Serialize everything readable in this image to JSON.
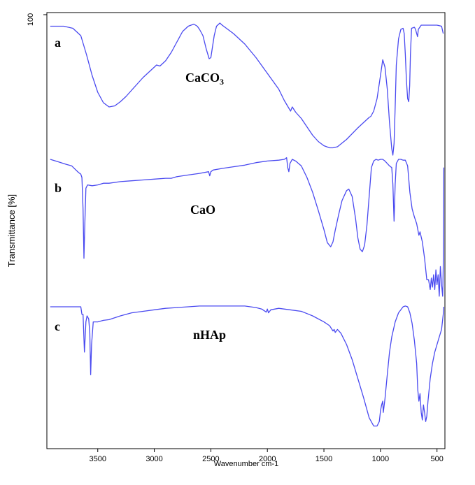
{
  "chart_data": {
    "type": "line",
    "title": "",
    "xlabel": "Wavenumber cm-1",
    "ylabel": "Transmittance [%]",
    "xlim": [
      3950,
      430
    ],
    "x_reversed": true,
    "x_ticks": [
      3500,
      3000,
      2500,
      2000,
      1500,
      1000,
      500
    ],
    "y_ticks": [
      "100"
    ],
    "grid": false,
    "legend": "none",
    "line_color": "#4a4af0",
    "series": [
      {
        "letter": "a",
        "name": "CaCO",
        "name_subscript": "3",
        "points": [
          [
            3920,
            0.03
          ],
          [
            3800,
            0.03
          ],
          [
            3720,
            0.05
          ],
          [
            3650,
            0.12
          ],
          [
            3600,
            0.3
          ],
          [
            3550,
            0.5
          ],
          [
            3500,
            0.66
          ],
          [
            3450,
            0.76
          ],
          [
            3400,
            0.8
          ],
          [
            3350,
            0.79
          ],
          [
            3300,
            0.75
          ],
          [
            3250,
            0.7
          ],
          [
            3200,
            0.64
          ],
          [
            3150,
            0.58
          ],
          [
            3100,
            0.52
          ],
          [
            3050,
            0.47
          ],
          [
            3000,
            0.42
          ],
          [
            2980,
            0.4
          ],
          [
            2950,
            0.41
          ],
          [
            2900,
            0.36
          ],
          [
            2850,
            0.28
          ],
          [
            2800,
            0.18
          ],
          [
            2750,
            0.08
          ],
          [
            2700,
            0.03
          ],
          [
            2650,
            0.01
          ],
          [
            2620,
            0.03
          ],
          [
            2600,
            0.06
          ],
          [
            2570,
            0.12
          ],
          [
            2540,
            0.25
          ],
          [
            2515,
            0.34
          ],
          [
            2500,
            0.33
          ],
          [
            2490,
            0.26
          ],
          [
            2470,
            0.12
          ],
          [
            2450,
            0.03
          ],
          [
            2420,
            0.0
          ],
          [
            2400,
            0.02
          ],
          [
            2300,
            0.1
          ],
          [
            2200,
            0.2
          ],
          [
            2100,
            0.33
          ],
          [
            2000,
            0.48
          ],
          [
            1900,
            0.63
          ],
          [
            1850,
            0.74
          ],
          [
            1800,
            0.83
          ],
          [
            1795,
            0.84
          ],
          [
            1780,
            0.8
          ],
          [
            1750,
            0.85
          ],
          [
            1700,
            0.91
          ],
          [
            1650,
            0.99
          ],
          [
            1600,
            1.07
          ],
          [
            1550,
            1.13
          ],
          [
            1500,
            1.17
          ],
          [
            1450,
            1.19
          ],
          [
            1420,
            1.19
          ],
          [
            1380,
            1.18
          ],
          [
            1300,
            1.11
          ],
          [
            1200,
            1.0
          ],
          [
            1130,
            0.93
          ],
          [
            1100,
            0.9
          ],
          [
            1085,
            0.89
          ],
          [
            1060,
            0.84
          ],
          [
            1030,
            0.72
          ],
          [
            1000,
            0.5
          ],
          [
            980,
            0.35
          ],
          [
            960,
            0.42
          ],
          [
            940,
            0.63
          ],
          [
            920,
            0.95
          ],
          [
            900,
            1.2
          ],
          [
            890,
            1.26
          ],
          [
            880,
            1.15
          ],
          [
            870,
            0.8
          ],
          [
            860,
            0.4
          ],
          [
            840,
            0.15
          ],
          [
            820,
            0.06
          ],
          [
            800,
            0.05
          ],
          [
            790,
            0.1
          ],
          [
            780,
            0.3
          ],
          [
            770,
            0.55
          ],
          [
            760,
            0.72
          ],
          [
            750,
            0.75
          ],
          [
            742,
            0.6
          ],
          [
            735,
            0.3
          ],
          [
            725,
            0.05
          ],
          [
            700,
            0.04
          ],
          [
            690,
            0.06
          ],
          [
            680,
            0.1
          ],
          [
            672,
            0.13
          ],
          [
            665,
            0.06
          ],
          [
            640,
            0.02
          ],
          [
            580,
            0.02
          ],
          [
            500,
            0.02
          ],
          [
            460,
            0.03
          ],
          [
            445,
            0.1
          ]
        ]
      },
      {
        "letter": "b",
        "name": "CaO",
        "points": [
          [
            3920,
            0.0
          ],
          [
            3850,
            0.03
          ],
          [
            3780,
            0.06
          ],
          [
            3730,
            0.08
          ],
          [
            3700,
            0.12
          ],
          [
            3670,
            0.16
          ],
          [
            3650,
            0.18
          ],
          [
            3640,
            0.22
          ],
          [
            3630,
            0.6
          ],
          [
            3622,
            1.2
          ],
          [
            3615,
            0.8
          ],
          [
            3605,
            0.35
          ],
          [
            3590,
            0.31
          ],
          [
            3550,
            0.32
          ],
          [
            3500,
            0.31
          ],
          [
            3450,
            0.29
          ],
          [
            3400,
            0.29
          ],
          [
            3300,
            0.27
          ],
          [
            3200,
            0.26
          ],
          [
            3100,
            0.25
          ],
          [
            3000,
            0.24
          ],
          [
            2900,
            0.23
          ],
          [
            2850,
            0.23
          ],
          [
            2800,
            0.21
          ],
          [
            2700,
            0.19
          ],
          [
            2600,
            0.17
          ],
          [
            2520,
            0.15
          ],
          [
            2510,
            0.2
          ],
          [
            2500,
            0.15
          ],
          [
            2480,
            0.13
          ],
          [
            2400,
            0.11
          ],
          [
            2300,
            0.09
          ],
          [
            2200,
            0.07
          ],
          [
            2100,
            0.04
          ],
          [
            2000,
            0.02
          ],
          [
            1900,
            0.01
          ],
          [
            1850,
            0.0
          ],
          [
            1830,
            -0.02
          ],
          [
            1820,
            0.1
          ],
          [
            1810,
            0.15
          ],
          [
            1800,
            0.05
          ],
          [
            1780,
            0.0
          ],
          [
            1750,
            0.02
          ],
          [
            1700,
            0.08
          ],
          [
            1650,
            0.22
          ],
          [
            1600,
            0.4
          ],
          [
            1550,
            0.62
          ],
          [
            1500,
            0.85
          ],
          [
            1470,
            1.01
          ],
          [
            1440,
            1.06
          ],
          [
            1420,
            1.0
          ],
          [
            1400,
            0.86
          ],
          [
            1370,
            0.67
          ],
          [
            1340,
            0.5
          ],
          [
            1300,
            0.38
          ],
          [
            1280,
            0.36
          ],
          [
            1250,
            0.45
          ],
          [
            1220,
            0.72
          ],
          [
            1200,
            0.95
          ],
          [
            1180,
            1.09
          ],
          [
            1160,
            1.12
          ],
          [
            1140,
            1.04
          ],
          [
            1120,
            0.8
          ],
          [
            1100,
            0.45
          ],
          [
            1080,
            0.1
          ],
          [
            1060,
            0.02
          ],
          [
            1040,
            0.0
          ],
          [
            1020,
            0.01
          ],
          [
            1000,
            0.0
          ],
          [
            980,
            0.0
          ],
          [
            960,
            0.02
          ],
          [
            940,
            0.05
          ],
          [
            920,
            0.08
          ],
          [
            900,
            0.1
          ],
          [
            890,
            0.3
          ],
          [
            880,
            0.75
          ],
          [
            870,
            0.3
          ],
          [
            860,
            0.05
          ],
          [
            840,
            0.0
          ],
          [
            820,
            0.0
          ],
          [
            800,
            0.01
          ],
          [
            780,
            0.01
          ],
          [
            760,
            0.08
          ],
          [
            740,
            0.4
          ],
          [
            720,
            0.6
          ],
          [
            700,
            0.7
          ],
          [
            680,
            0.78
          ],
          [
            660,
            0.92
          ],
          [
            650,
            0.88
          ],
          [
            630,
            1.0
          ],
          [
            610,
            1.2
          ],
          [
            590,
            1.46
          ],
          [
            575,
            1.46
          ],
          [
            560,
            1.58
          ],
          [
            550,
            1.44
          ],
          [
            540,
            1.55
          ],
          [
            530,
            1.4
          ],
          [
            520,
            1.58
          ],
          [
            510,
            1.34
          ],
          [
            500,
            1.52
          ],
          [
            490,
            1.4
          ],
          [
            480,
            1.66
          ],
          [
            470,
            1.3
          ],
          [
            460,
            1.52
          ],
          [
            450,
            1.66
          ],
          [
            445,
            1.3
          ],
          [
            440,
            0.1
          ]
        ]
      },
      {
        "letter": "c",
        "name": "nHAp",
        "points": [
          [
            3920,
            0.0
          ],
          [
            3800,
            0.0
          ],
          [
            3700,
            0.0
          ],
          [
            3650,
            0.0
          ],
          [
            3640,
            0.1
          ],
          [
            3630,
            0.1
          ],
          [
            3625,
            0.3
          ],
          [
            3618,
            0.6
          ],
          [
            3605,
            0.2
          ],
          [
            3595,
            0.12
          ],
          [
            3580,
            0.16
          ],
          [
            3570,
            0.35
          ],
          [
            3563,
            0.9
          ],
          [
            3555,
            0.5
          ],
          [
            3540,
            0.2
          ],
          [
            3500,
            0.2
          ],
          [
            3450,
            0.18
          ],
          [
            3400,
            0.17
          ],
          [
            3300,
            0.12
          ],
          [
            3200,
            0.08
          ],
          [
            3100,
            0.06
          ],
          [
            3000,
            0.04
          ],
          [
            2900,
            0.02
          ],
          [
            2800,
            0.01
          ],
          [
            2700,
            0.0
          ],
          [
            2600,
            -0.01
          ],
          [
            2500,
            -0.01
          ],
          [
            2400,
            -0.01
          ],
          [
            2300,
            -0.01
          ],
          [
            2200,
            -0.01
          ],
          [
            2100,
            0.01
          ],
          [
            2050,
            0.03
          ],
          [
            2010,
            0.07
          ],
          [
            2000,
            0.03
          ],
          [
            1990,
            0.08
          ],
          [
            1970,
            0.04
          ],
          [
            1900,
            0.02
          ],
          [
            1800,
            0.04
          ],
          [
            1700,
            0.06
          ],
          [
            1650,
            0.09
          ],
          [
            1600,
            0.12
          ],
          [
            1500,
            0.2
          ],
          [
            1450,
            0.25
          ],
          [
            1420,
            0.32
          ],
          [
            1410,
            0.3
          ],
          [
            1400,
            0.34
          ],
          [
            1380,
            0.3
          ],
          [
            1350,
            0.35
          ],
          [
            1300,
            0.5
          ],
          [
            1250,
            0.7
          ],
          [
            1200,
            0.95
          ],
          [
            1150,
            1.2
          ],
          [
            1100,
            1.47
          ],
          [
            1060,
            1.58
          ],
          [
            1030,
            1.58
          ],
          [
            1010,
            1.52
          ],
          [
            1000,
            1.38
          ],
          [
            990,
            1.3
          ],
          [
            980,
            1.25
          ],
          [
            975,
            1.4
          ],
          [
            960,
            1.22
          ],
          [
            940,
            0.9
          ],
          [
            920,
            0.6
          ],
          [
            900,
            0.4
          ],
          [
            870,
            0.2
          ],
          [
            840,
            0.08
          ],
          [
            800,
            0.0
          ],
          [
            780,
            -0.01
          ],
          [
            760,
            0.0
          ],
          [
            740,
            0.08
          ],
          [
            720,
            0.22
          ],
          [
            700,
            0.45
          ],
          [
            680,
            0.75
          ],
          [
            670,
            1.1
          ],
          [
            660,
            1.25
          ],
          [
            650,
            1.15
          ],
          [
            640,
            1.4
          ],
          [
            630,
            1.5
          ],
          [
            620,
            1.3
          ],
          [
            610,
            1.4
          ],
          [
            600,
            1.52
          ],
          [
            590,
            1.45
          ],
          [
            580,
            1.25
          ],
          [
            570,
            1.1
          ],
          [
            560,
            0.95
          ],
          [
            540,
            0.75
          ],
          [
            520,
            0.6
          ],
          [
            500,
            0.5
          ],
          [
            480,
            0.4
          ],
          [
            460,
            0.3
          ],
          [
            445,
            0.1
          ],
          [
            440,
            0.0
          ]
        ]
      }
    ]
  }
}
